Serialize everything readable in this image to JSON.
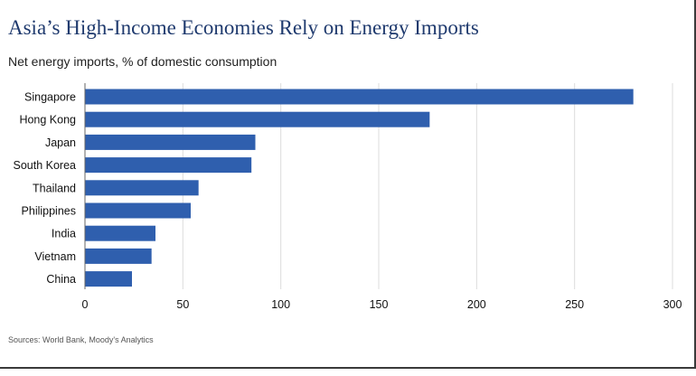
{
  "header": {
    "title": "Asia’s High-Income Economies Rely on Energy Imports",
    "subtitle": "Net energy imports, % of domestic consumption"
  },
  "footer": {
    "source": "Sources: World Bank, Moody's Analytics"
  },
  "colors": {
    "bar": "#2f5fae",
    "grid": "#dcdcdc",
    "axis": "#666666"
  },
  "chart_data": {
    "type": "bar",
    "orientation": "horizontal",
    "title": "Asia’s High-Income Economies Rely on Energy Imports",
    "subtitle": "Net energy imports, % of domestic consumption",
    "categories": [
      "Singapore",
      "Hong Kong",
      "Japan",
      "South Korea",
      "Thailand",
      "Philippines",
      "India",
      "Vietnam",
      "China"
    ],
    "values": [
      280,
      176,
      87,
      85,
      58,
      54,
      36,
      34,
      24
    ],
    "xlim": [
      0,
      300
    ],
    "xticks": [
      0,
      50,
      100,
      150,
      200,
      250,
      300
    ],
    "grid": true,
    "legend": "none"
  }
}
